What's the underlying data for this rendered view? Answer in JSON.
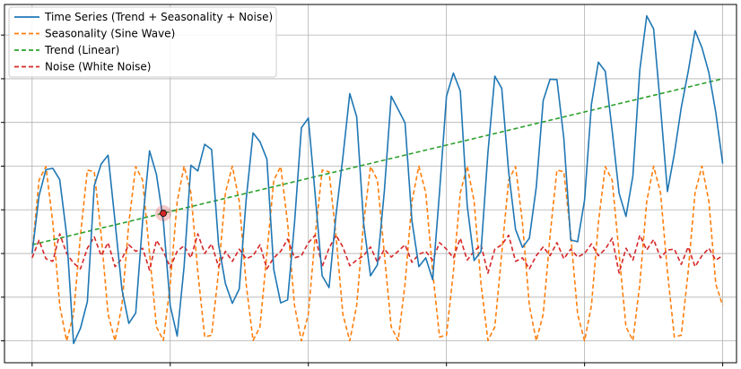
{
  "chart_data": {
    "type": "line",
    "title": "",
    "xlabel": "",
    "ylabel": "",
    "xlim": [
      -4,
      102
    ],
    "ylim": [
      -2.5,
      5.7
    ],
    "grid": true,
    "legend_position": "top-left",
    "x": [
      0,
      1,
      2,
      3,
      4,
      5,
      6,
      7,
      8,
      9,
      10,
      11,
      12,
      13,
      14,
      15,
      16,
      17,
      18,
      19,
      20,
      21,
      22,
      23,
      24,
      25,
      26,
      27,
      28,
      29,
      30,
      31,
      32,
      33,
      34,
      35,
      36,
      37,
      38,
      39,
      40,
      41,
      42,
      43,
      44,
      45,
      46,
      47,
      48,
      49,
      50,
      51,
      52,
      53,
      54,
      55,
      56,
      57,
      58,
      59,
      60,
      61,
      62,
      63,
      64,
      65,
      66,
      67,
      68,
      69,
      70,
      71,
      72,
      73,
      74,
      75,
      76,
      77,
      78,
      79,
      80,
      81,
      82,
      83,
      84,
      85,
      86,
      87,
      88,
      89,
      90,
      91,
      92,
      93,
      94,
      95,
      96,
      97,
      98,
      99,
      100
    ],
    "series": [
      {
        "name": "Time Series (Trend + Seasonality + Noise)",
        "color": "#1f77b4",
        "style": "solid",
        "values": [
          0.0,
          1.32,
          1.92,
          1.95,
          1.69,
          0.42,
          -2.06,
          -1.71,
          -1.1,
          1.55,
          2.05,
          2.25,
          0.74,
          -0.82,
          -1.6,
          -1.36,
          0.74,
          2.35,
          1.81,
          0.74,
          -1.2,
          -1.89,
          -0.3,
          2.02,
          1.89,
          2.5,
          2.38,
          0.21,
          -0.69,
          -1.14,
          -0.81,
          1.23,
          2.76,
          2.56,
          2.16,
          -0.37,
          -1.13,
          -1.06,
          0.7,
          2.88,
          3.1,
          1.33,
          -0.51,
          -0.78,
          0.87,
          2.2,
          3.66,
          3.13,
          0.7,
          -0.51,
          -0.26,
          1.42,
          3.6,
          3.3,
          2.99,
          0.75,
          -0.3,
          -0.1,
          -0.6,
          1.42,
          3.6,
          4.13,
          3.72,
          1.1,
          -0.16,
          0.05,
          2.31,
          4.06,
          3.78,
          1.87,
          0.55,
          0.14,
          0.35,
          1.52,
          3.5,
          3.99,
          3.98,
          2.64,
          0.31,
          0.27,
          1.22,
          3.42,
          4.38,
          4.17,
          2.81,
          1.38,
          0.85,
          1.78,
          4.2,
          5.44,
          5.14,
          3.35,
          1.42,
          2.28,
          3.34,
          4.16,
          5.1,
          4.71,
          4.14,
          3.23,
          2.06
        ]
      },
      {
        "name": "Seasonality (Sine Wave)",
        "color": "#ff7f0e",
        "style": "dashed",
        "values": [
          0.0,
          1.68,
          1.99,
          0.7,
          -1.19,
          -2.0,
          -1.39,
          0.42,
          1.91,
          1.87,
          0.42,
          -1.39,
          -2.0,
          -1.19,
          0.7,
          1.99,
          1.68,
          0.0,
          -1.68,
          -1.99,
          -0.7,
          1.19,
          2.0,
          1.39,
          -0.42,
          -1.91,
          -1.87,
          -0.42,
          1.39,
          2.0,
          1.19,
          -0.7,
          -1.99,
          -1.68,
          0.0,
          1.68,
          1.99,
          0.7,
          -1.19,
          -2.0,
          -1.39,
          0.42,
          1.91,
          1.87,
          0.42,
          -1.39,
          -2.0,
          -1.19,
          0.7,
          1.99,
          1.68,
          0.0,
          -1.68,
          -1.99,
          -0.7,
          1.19,
          2.0,
          1.39,
          -0.42,
          -1.91,
          -1.87,
          -0.42,
          1.39,
          2.0,
          1.19,
          -0.7,
          -1.99,
          -1.68,
          0.0,
          1.68,
          1.99,
          0.7,
          -1.19,
          -2.0,
          -1.39,
          0.42,
          1.91,
          1.87,
          0.42,
          -1.39,
          -2.0,
          -1.19,
          0.7,
          1.99,
          1.68,
          0.0,
          -1.68,
          -1.99,
          -0.7,
          1.19,
          2.0,
          1.39,
          -0.42,
          -1.91,
          -1.87,
          -0.42,
          1.39,
          2.0,
          1.19,
          -0.7,
          -1.19
        ]
      },
      {
        "name": "Trend (Linear)",
        "color": "#2ca02c",
        "style": "dashed",
        "values": "linear from 0.2 at x=0 to 4.0 at x=100"
      },
      {
        "name": "Noise (White Noise)",
        "color": "#d62728",
        "style": "dashed",
        "values": [
          -0.1,
          0.3,
          -0.12,
          -0.18,
          0.45,
          0.0,
          -0.22,
          -0.35,
          0.12,
          0.38,
          -0.05,
          0.25,
          -0.3,
          -0.12,
          0.2,
          0.05,
          0.12,
          -0.38,
          0.3,
          0.05,
          -0.32,
          0.05,
          0.18,
          -0.1,
          0.45,
          0.0,
          0.22,
          -0.3,
          0.05,
          -0.18,
          0.1,
          -0.12,
          -0.05,
          0.2,
          -0.35,
          -0.1,
          0.05,
          0.33,
          -0.1,
          -0.05,
          0.25,
          0.42,
          -0.3,
          0.12,
          0.42,
          0.15,
          -0.28,
          -0.15,
          -0.05,
          0.15,
          -0.2,
          0.1,
          -0.08,
          0.05,
          0.2,
          -0.2,
          -0.02,
          0.05,
          -0.15,
          0.25,
          0.1,
          -0.1,
          0.35,
          -0.15,
          0.05,
          0.2,
          -0.45,
          0.1,
          0.2,
          0.42,
          -0.18,
          -0.1,
          -0.35,
          -0.05,
          0.15,
          -0.05,
          0.25,
          -0.12,
          0.1,
          -0.08,
          0.0,
          0.22,
          -0.05,
          0.1,
          0.35,
          -0.45,
          0.12,
          -0.15,
          0.42,
          0.08,
          0.32,
          -0.1,
          0.08,
          0.1,
          -0.25,
          0.15,
          -0.3,
          -0.05,
          0.12,
          -0.15,
          -0.05
        ]
      }
    ],
    "annotation_point": {
      "x": 19,
      "y": 0.92,
      "color": "#d62728"
    }
  }
}
